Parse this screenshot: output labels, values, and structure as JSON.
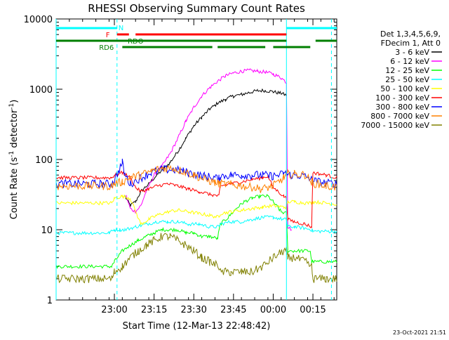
{
  "chart_data": {
    "type": "line",
    "title": "RHESSI Observing Summary Count Rates",
    "xlabel": "Start Time (12-Mar-13 22:48:42)",
    "ylabel_main": "Count Rate (s",
    "ylabel_sup1": "-1",
    "ylabel_mid": " detector",
    "ylabel_sup2": "-1",
    "ylabel_end": ")",
    "y_scale": "log",
    "ylim": [
      1,
      10000
    ],
    "xlim_minutes": [
      -10,
      96
    ],
    "x_ticks": [
      {
        "t": 12,
        "label": "23:00"
      },
      {
        "t": 27,
        "label": "23:15"
      },
      {
        "t": 42,
        "label": "23:30"
      },
      {
        "t": 57,
        "label": "23:45"
      },
      {
        "t": 72,
        "label": "00:00"
      },
      {
        "t": 87,
        "label": "00:15"
      }
    ],
    "y_ticks": [
      {
        "v": 1,
        "label": "1"
      },
      {
        "v": 10,
        "label": "10"
      },
      {
        "v": 100,
        "label": "100"
      },
      {
        "v": 1000,
        "label": "1000"
      },
      {
        "v": 10000,
        "label": "10000"
      }
    ],
    "legend_header": [
      "Det 1,3,4,5,6,9,",
      "FDecim 1, Att 0"
    ],
    "legend_position": "right",
    "series": [
      {
        "name": "3 - 6 keV",
        "color": "#000000",
        "points": [
          [
            -10,
            null
          ],
          [
            15,
            null
          ],
          [
            16,
            30
          ],
          [
            18,
            22
          ],
          [
            20,
            25
          ],
          [
            22,
            35
          ],
          [
            25,
            45
          ],
          [
            28,
            60
          ],
          [
            30,
            70
          ],
          [
            33,
            90
          ],
          [
            36,
            130
          ],
          [
            39,
            200
          ],
          [
            42,
            300
          ],
          [
            45,
            400
          ],
          [
            48,
            520
          ],
          [
            51,
            630
          ],
          [
            54,
            720
          ],
          [
            57,
            800
          ],
          [
            60,
            840
          ],
          [
            63,
            900
          ],
          [
            66,
            950
          ],
          [
            69,
            960
          ],
          [
            72,
            920
          ],
          [
            75,
            870
          ],
          [
            77,
            820
          ],
          [
            77.5,
            null
          ]
        ]
      },
      {
        "name": "6 - 12 keV",
        "color": "#ff00ff",
        "points": [
          [
            -10,
            null
          ],
          [
            16,
            null
          ],
          [
            16.5,
            30
          ],
          [
            18,
            20
          ],
          [
            20,
            18
          ],
          [
            22,
            22
          ],
          [
            24,
            35
          ],
          [
            27,
            60
          ],
          [
            30,
            80
          ],
          [
            33,
            120
          ],
          [
            36,
            200
          ],
          [
            39,
            350
          ],
          [
            42,
            550
          ],
          [
            45,
            800
          ],
          [
            48,
            1050
          ],
          [
            51,
            1300
          ],
          [
            54,
            1550
          ],
          [
            57,
            1700
          ],
          [
            60,
            1800
          ],
          [
            63,
            1850
          ],
          [
            66,
            1800
          ],
          [
            69,
            1750
          ],
          [
            72,
            1650
          ],
          [
            75,
            1450
          ],
          [
            77,
            1250
          ],
          [
            77.5,
            11
          ],
          [
            79,
            10
          ],
          [
            80,
            null
          ]
        ]
      },
      {
        "name": "12 - 25 keV",
        "color": "#00ff00",
        "points": [
          [
            -10,
            3
          ],
          [
            11,
            3
          ],
          [
            12,
            3.5
          ],
          [
            15,
            5
          ],
          [
            18,
            6
          ],
          [
            21,
            7
          ],
          [
            24,
            8
          ],
          [
            27,
            9
          ],
          [
            30,
            10
          ],
          [
            33,
            10
          ],
          [
            36,
            10
          ],
          [
            39,
            9
          ],
          [
            42,
            9
          ],
          [
            45,
            8
          ],
          [
            48,
            8
          ],
          [
            51,
            7.5
          ],
          [
            52,
            12
          ],
          [
            55,
            15
          ],
          [
            58,
            20
          ],
          [
            61,
            25
          ],
          [
            64,
            28
          ],
          [
            67,
            30
          ],
          [
            70,
            30
          ],
          [
            72,
            25
          ],
          [
            74,
            20
          ],
          [
            75,
            18
          ],
          [
            77,
            17
          ],
          [
            77.5,
            5
          ],
          [
            80,
            5
          ],
          [
            86,
            5
          ],
          [
            86.5,
            3.5
          ],
          [
            96,
            3.5
          ]
        ]
      },
      {
        "name": "25 - 50 keV",
        "color": "#00ffff",
        "points": [
          [
            -10,
            9
          ],
          [
            10,
            9
          ],
          [
            12,
            10
          ],
          [
            14,
            10
          ],
          [
            16,
            10
          ],
          [
            20,
            11
          ],
          [
            24,
            12
          ],
          [
            28,
            13
          ],
          [
            32,
            13
          ],
          [
            36,
            13
          ],
          [
            40,
            12
          ],
          [
            44,
            12
          ],
          [
            48,
            11
          ],
          [
            51.5,
            11
          ],
          [
            52,
            12
          ],
          [
            56,
            13
          ],
          [
            60,
            13
          ],
          [
            64,
            14
          ],
          [
            68,
            15
          ],
          [
            72,
            15
          ],
          [
            76,
            14
          ],
          [
            77,
            14
          ],
          [
            77.5,
            11
          ],
          [
            80,
            11
          ],
          [
            84,
            10.5
          ],
          [
            86.5,
            10
          ],
          [
            87,
            9.5
          ],
          [
            94,
            9.5
          ],
          [
            96,
            9.5
          ]
        ]
      },
      {
        "name": "50 - 100 keV",
        "color": "#ffff00",
        "points": [
          [
            -10,
            24
          ],
          [
            11,
            24
          ],
          [
            12,
            28
          ],
          [
            15,
            30
          ],
          [
            18,
            28
          ],
          [
            22,
            12
          ],
          [
            25,
            14
          ],
          [
            28,
            16
          ],
          [
            32,
            18
          ],
          [
            36,
            19
          ],
          [
            40,
            18
          ],
          [
            44,
            17
          ],
          [
            48,
            16
          ],
          [
            51.5,
            15
          ],
          [
            52,
            17
          ],
          [
            56,
            18
          ],
          [
            60,
            19
          ],
          [
            64,
            20
          ],
          [
            68,
            21
          ],
          [
            72,
            22
          ],
          [
            76,
            21
          ],
          [
            77,
            21
          ],
          [
            77.5,
            25
          ],
          [
            80,
            25
          ],
          [
            84,
            24
          ],
          [
            86.5,
            24
          ],
          [
            87,
            25
          ],
          [
            92,
            24
          ],
          [
            96,
            23
          ]
        ]
      },
      {
        "name": "100 - 300 keV",
        "color": "#ff0000",
        "points": [
          [
            -10,
            55
          ],
          [
            11,
            55
          ],
          [
            12,
            60
          ],
          [
            15,
            65
          ],
          [
            18,
            55
          ],
          [
            20,
            40
          ],
          [
            22,
            35
          ],
          [
            25,
            38
          ],
          [
            28,
            42
          ],
          [
            32,
            45
          ],
          [
            36,
            42
          ],
          [
            40,
            38
          ],
          [
            44,
            35
          ],
          [
            48,
            32
          ],
          [
            51.5,
            30
          ],
          [
            52,
            42
          ],
          [
            56,
            45
          ],
          [
            60,
            48
          ],
          [
            64,
            52
          ],
          [
            68,
            55
          ],
          [
            70,
            58
          ],
          [
            72,
            40
          ],
          [
            76,
            30
          ],
          [
            77,
            28
          ],
          [
            77.5,
            14
          ],
          [
            80,
            13
          ],
          [
            84,
            12
          ],
          [
            86.5,
            11
          ],
          [
            87,
            65
          ],
          [
            92,
            60
          ],
          [
            96,
            55
          ]
        ]
      },
      {
        "name": "300 - 800 keV",
        "color": "#0000ff",
        "points": [
          [
            -10,
            45
          ],
          [
            11,
            45
          ],
          [
            12,
            50
          ],
          [
            15,
            90
          ],
          [
            16,
            60
          ],
          [
            18,
            45
          ],
          [
            22,
            55
          ],
          [
            26,
            65
          ],
          [
            30,
            72
          ],
          [
            34,
            72
          ],
          [
            38,
            68
          ],
          [
            42,
            62
          ],
          [
            46,
            58
          ],
          [
            50,
            55
          ],
          [
            51.5,
            53
          ],
          [
            52,
            58
          ],
          [
            56,
            60
          ],
          [
            60,
            60
          ],
          [
            64,
            60
          ],
          [
            68,
            60
          ],
          [
            72,
            58
          ],
          [
            76,
            62
          ],
          [
            77,
            62
          ],
          [
            77.5,
            60
          ],
          [
            80,
            60
          ],
          [
            84,
            58
          ],
          [
            86.5,
            52
          ],
          [
            87,
            50
          ],
          [
            92,
            46
          ],
          [
            96,
            45
          ]
        ]
      },
      {
        "name": "800 - 7000 keV",
        "color": "#ff8000",
        "points": [
          [
            -10,
            42
          ],
          [
            11,
            42
          ],
          [
            12,
            45
          ],
          [
            15,
            48
          ],
          [
            18,
            55
          ],
          [
            22,
            60
          ],
          [
            26,
            68
          ],
          [
            30,
            75
          ],
          [
            34,
            75
          ],
          [
            38,
            68
          ],
          [
            42,
            60
          ],
          [
            46,
            52
          ],
          [
            50,
            47
          ],
          [
            51.5,
            45
          ],
          [
            52,
            45
          ],
          [
            56,
            44
          ],
          [
            60,
            42
          ],
          [
            64,
            40
          ],
          [
            68,
            38
          ],
          [
            72,
            42
          ],
          [
            76,
            55
          ],
          [
            77,
            60
          ],
          [
            77.5,
            62
          ],
          [
            80,
            62
          ],
          [
            84,
            60
          ],
          [
            86.5,
            48
          ],
          [
            87,
            46
          ],
          [
            92,
            42
          ],
          [
            96,
            40
          ]
        ]
      },
      {
        "name": "7000 - 15000 keV",
        "color": "#808000",
        "points": [
          [
            -10,
            2
          ],
          [
            11,
            2
          ],
          [
            12,
            2.5
          ],
          [
            15,
            3
          ],
          [
            18,
            4
          ],
          [
            21,
            5
          ],
          [
            24,
            6
          ],
          [
            27,
            7
          ],
          [
            30,
            8
          ],
          [
            33,
            8
          ],
          [
            36,
            7
          ],
          [
            39,
            6
          ],
          [
            42,
            5
          ],
          [
            45,
            4
          ],
          [
            48,
            3.5
          ],
          [
            51.5,
            3
          ],
          [
            52,
            2.5
          ],
          [
            56,
            2.5
          ],
          [
            60,
            2.5
          ],
          [
            64,
            2.5
          ],
          [
            68,
            3
          ],
          [
            72,
            4
          ],
          [
            76,
            5
          ],
          [
            77,
            5
          ],
          [
            77.5,
            4
          ],
          [
            80,
            4
          ],
          [
            84,
            3.5
          ],
          [
            86.5,
            3
          ],
          [
            87,
            2
          ],
          [
            92,
            2
          ],
          [
            96,
            2
          ]
        ]
      }
    ],
    "state_bars": [
      {
        "label": "N",
        "color": "#00ffff",
        "label_t": 14.5,
        "segments": [
          [
            -10,
            13
          ],
          [
            77,
            96
          ]
        ],
        "level": 0
      },
      {
        "label": "F",
        "color": "#ff0000",
        "label_t": 9.5,
        "segments": [
          [
            13,
            17.5
          ],
          [
            20,
            77
          ]
        ],
        "level": 1
      },
      {
        "label": "RDO",
        "color": "#007f00",
        "label_t": 20,
        "segments": [
          [
            -10,
            77
          ],
          [
            88,
            96
          ]
        ],
        "level": 2
      },
      {
        "label": "RD6",
        "color": "#007f00",
        "label_t": 9,
        "segments": [
          [
            15,
            49
          ],
          [
            51,
            69
          ],
          [
            72,
            86
          ]
        ],
        "level": 3
      }
    ],
    "markers": [
      {
        "t": -10,
        "style": "solid"
      },
      {
        "t": 13,
        "style": "dashed"
      },
      {
        "t": 77,
        "style": "solid"
      },
      {
        "t": 94,
        "style": "dashed"
      }
    ]
  },
  "timestamp": "23-Oct-2021 21:51"
}
